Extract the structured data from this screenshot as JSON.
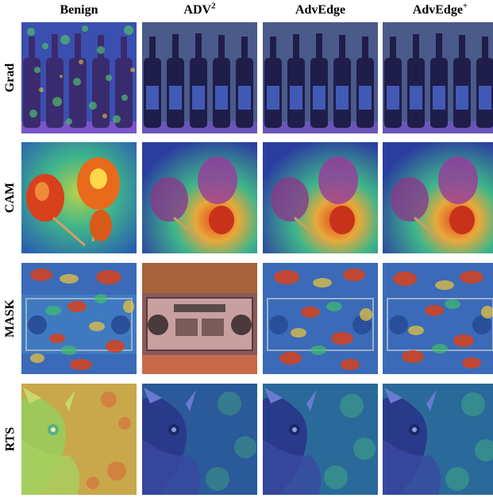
{
  "columns": [
    {
      "label": "Benign",
      "sup": ""
    },
    {
      "label": "ADV",
      "sup": "2"
    },
    {
      "label": "AdvEdge",
      "sup": ""
    },
    {
      "label": "AdvEdge",
      "sup": "+"
    }
  ],
  "rows": [
    "Grad",
    "CAM",
    "MASK",
    "RTS"
  ],
  "colors": {
    "heat_low": "#2a3f9e",
    "heat_mid": "#35b779",
    "heat_high": "#e8311a",
    "heat_peak": "#ffd84a"
  }
}
